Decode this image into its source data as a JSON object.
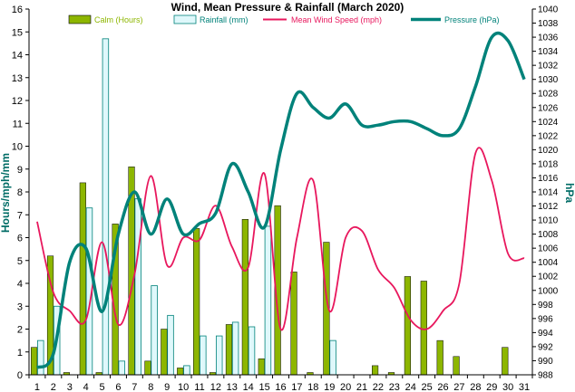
{
  "chart_data": {
    "type": "bar",
    "title": "Wind, Mean Pressure & Rainfall (March 2020)",
    "ylabel": "Hours/mph/mm",
    "ylabel_right": "hPa",
    "ylim": [
      0,
      16
    ],
    "yticks": [
      "0",
      "1",
      "2",
      "3",
      "4",
      "5",
      "6",
      "7",
      "8",
      "9",
      "10",
      "11",
      "12",
      "13",
      "14",
      "15",
      "16"
    ],
    "ylim_right": [
      988,
      1040
    ],
    "yticks_right": [
      "988",
      "990",
      "992",
      "994",
      "996",
      "998",
      "1000",
      "1002",
      "1004",
      "1006",
      "1008",
      "1010",
      "1012",
      "1014",
      "1016",
      "1018",
      "1020",
      "1022",
      "1024",
      "1026",
      "1028",
      "1030",
      "1032",
      "1034",
      "1036",
      "1038",
      "1040"
    ],
    "categories": [
      "1",
      "2",
      "3",
      "4",
      "5",
      "6",
      "7",
      "8",
      "9",
      "10",
      "11",
      "12",
      "13",
      "14",
      "15",
      "16",
      "17",
      "18",
      "19",
      "20",
      "21",
      "22",
      "23",
      "24",
      "25",
      "26",
      "27",
      "28",
      "29",
      "30",
      "31"
    ],
    "legend_position": "top",
    "grid": false,
    "series": [
      {
        "name": "Calm (Hours)",
        "type": "bar",
        "axis": "left",
        "color": "#8db600",
        "values": [
          1.2,
          5.2,
          0.1,
          8.4,
          0.1,
          6.6,
          9.1,
          0.6,
          2.0,
          0.3,
          6.4,
          0.1,
          2.2,
          6.8,
          0.7,
          7.4,
          4.5,
          0.1,
          5.8,
          0,
          0,
          0.4,
          0.1,
          4.3,
          4.1,
          1.5,
          0.8,
          0,
          0,
          1.2,
          0
        ]
      },
      {
        "name": "Rainfall (mm)",
        "type": "bar",
        "axis": "left",
        "color": "#dff8fb",
        "values": [
          1.5,
          3.0,
          0,
          7.3,
          14.7,
          0.6,
          7.7,
          3.9,
          2.6,
          0.4,
          1.7,
          1.7,
          2.3,
          2.1,
          6.5,
          0,
          0,
          0,
          1.5,
          0,
          0,
          0,
          0,
          0,
          0,
          0,
          0,
          0,
          0,
          0,
          0
        ]
      },
      {
        "name": "Mean Wind Speed (mph)",
        "type": "line",
        "axis": "left",
        "color": "#e8175d",
        "values": [
          6.7,
          3.6,
          2.8,
          2.4,
          5.8,
          2.2,
          4.4,
          8.7,
          4.8,
          6.0,
          5.9,
          7.4,
          5.6,
          4.7,
          8.8,
          2.0,
          6.0,
          8.5,
          2.8,
          6.0,
          6.3,
          4.6,
          3.8,
          2.4,
          2.0,
          2.8,
          4.0,
          9.7,
          8.5,
          5.3,
          5.1
        ]
      },
      {
        "name": "Pressure (hPa)",
        "type": "line",
        "axis": "right",
        "color": "#00827a",
        "values": [
          989,
          991,
          1004,
          1006,
          997,
          1008,
          1014,
          1008,
          1013,
          1008,
          1009.5,
          1011,
          1018,
          1014,
          1009,
          1020,
          1028,
          1026,
          1024.5,
          1026.5,
          1023.5,
          1023.5,
          1024,
          1024,
          1023,
          1022,
          1023,
          1029,
          1036,
          1035.5,
          1030
        ]
      }
    ]
  }
}
